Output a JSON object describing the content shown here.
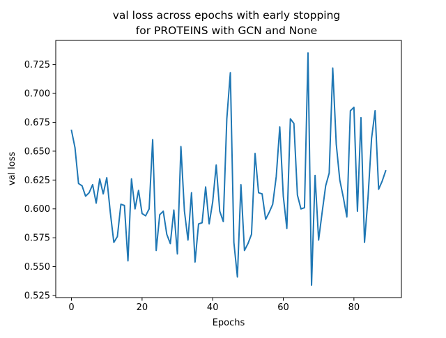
{
  "chart_data": {
    "type": "line",
    "title_line1": "val loss across epochs with early stopping",
    "title_line2": "for PROTEINS with GCN and None",
    "xlabel": "Epochs",
    "ylabel": "val loss",
    "xlim": [
      -4.45,
      93.45
    ],
    "ylim": [
      0.5232,
      0.7459
    ],
    "xticks": [
      0,
      20,
      40,
      60,
      80
    ],
    "xtick_labels": [
      "0",
      "20",
      "40",
      "60",
      "80"
    ],
    "yticks": [
      0.525,
      0.55,
      0.575,
      0.6,
      0.625,
      0.65,
      0.675,
      0.7,
      0.725
    ],
    "ytick_labels": [
      "0.525",
      "0.550",
      "0.575",
      "0.600",
      "0.625",
      "0.650",
      "0.675",
      "0.700",
      "0.725"
    ],
    "grid": false,
    "series": [
      {
        "color": "#1f77b4",
        "x": [
          0,
          1,
          2,
          3,
          4,
          5,
          6,
          7,
          8,
          9,
          10,
          11,
          12,
          13,
          14,
          15,
          16,
          17,
          18,
          19,
          20,
          21,
          22,
          23,
          24,
          25,
          26,
          27,
          28,
          29,
          30,
          31,
          32,
          33,
          34,
          35,
          36,
          37,
          38,
          39,
          40,
          41,
          42,
          43,
          44,
          45,
          46,
          47,
          48,
          49,
          50,
          51,
          52,
          53,
          54,
          55,
          56,
          57,
          58,
          59,
          60,
          61,
          62,
          63,
          64,
          65,
          66,
          67,
          68,
          69,
          70,
          71,
          72,
          73,
          74,
          75,
          76,
          77,
          78,
          79,
          80,
          81,
          82,
          83,
          84,
          85,
          86,
          87,
          88,
          89
        ],
        "values": [
          0.668,
          0.653,
          0.622,
          0.62,
          0.611,
          0.614,
          0.621,
          0.605,
          0.626,
          0.613,
          0.627,
          0.597,
          0.571,
          0.576,
          0.604,
          0.603,
          0.555,
          0.626,
          0.6,
          0.616,
          0.596,
          0.594,
          0.6,
          0.66,
          0.564,
          0.595,
          0.598,
          0.578,
          0.57,
          0.599,
          0.561,
          0.654,
          0.598,
          0.573,
          0.614,
          0.554,
          0.587,
          0.588,
          0.619,
          0.587,
          0.606,
          0.638,
          0.598,
          0.589,
          0.678,
          0.718,
          0.571,
          0.541,
          0.621,
          0.564,
          0.57,
          0.578,
          0.648,
          0.614,
          0.613,
          0.591,
          0.597,
          0.604,
          0.628,
          0.671,
          0.611,
          0.583,
          0.678,
          0.674,
          0.612,
          0.6,
          0.601,
          0.735,
          0.534,
          0.629,
          0.573,
          0.597,
          0.62,
          0.631,
          0.722,
          0.656,
          0.625,
          0.61,
          0.593,
          0.685,
          0.688,
          0.598,
          0.679,
          0.571,
          0.61,
          0.661,
          0.685,
          0.617,
          0.624,
          0.633
        ]
      }
    ]
  }
}
